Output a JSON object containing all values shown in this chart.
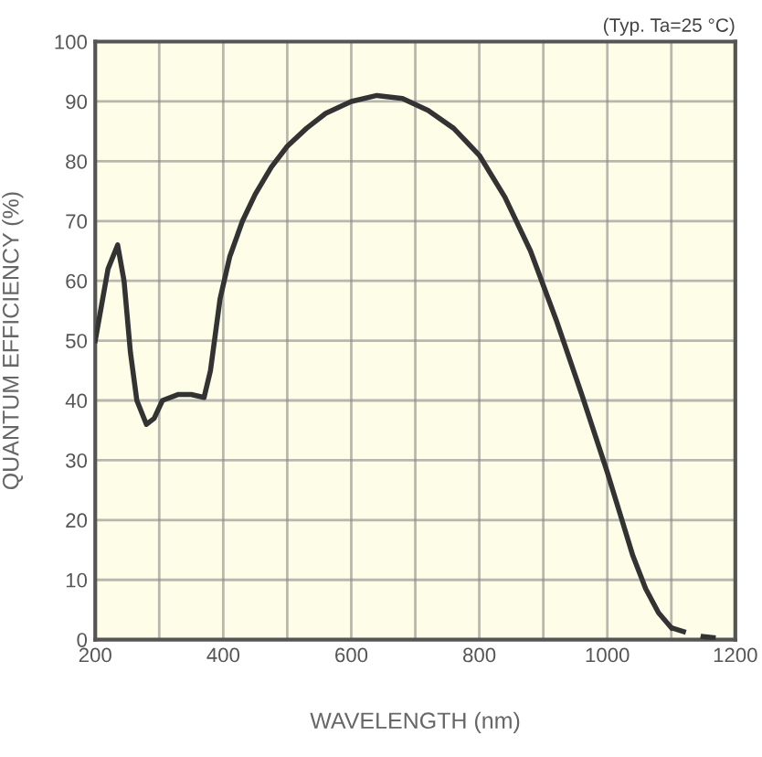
{
  "chart_data": {
    "type": "line",
    "xlabel": "WAVELENGTH (nm)",
    "ylabel": "QUANTUM EFFICIENCY (%)",
    "annotations": [
      "(Typ. Ta=25 °C)"
    ],
    "series": [
      {
        "color": "#333333",
        "line_style": "solid",
        "x": [
          200,
          210,
          220,
          235,
          245,
          255,
          265,
          280,
          292,
          305,
          330,
          350,
          370,
          380,
          395,
          410,
          430,
          450,
          475,
          500,
          530,
          560,
          600,
          640,
          680,
          720,
          760,
          800,
          840,
          880,
          920,
          960,
          1000,
          1020,
          1040,
          1060,
          1080,
          1100
        ],
        "values": [
          50,
          56,
          62,
          66,
          60,
          48,
          40,
          36,
          37,
          40,
          41,
          41,
          40.5,
          45,
          57,
          64,
          70,
          74.5,
          79,
          82.5,
          85.5,
          88,
          90,
          91,
          90.5,
          88.5,
          85.5,
          81,
          74,
          65,
          53.5,
          41,
          28,
          21,
          14,
          8.5,
          4.5,
          2
        ]
      },
      {
        "color": "#333333",
        "line_style": "dashed",
        "x": [
          1100,
          1130,
          1150,
          1170
        ],
        "values": [
          2,
          1,
          0.5,
          0.3
        ]
      }
    ],
    "xlim": [
      200,
      1200
    ],
    "xticks": [
      200,
      {
        "value": 300,
        "label": null
      },
      400,
      {
        "value": 500,
        "label": null
      },
      600,
      {
        "value": 700,
        "label": null
      },
      800,
      {
        "value": 900,
        "label": null
      },
      1000,
      {
        "value": 1100,
        "label": null
      },
      1200
    ],
    "ylim": [
      0,
      100
    ],
    "yticks": [
      0,
      10,
      20,
      30,
      40,
      50,
      60,
      70,
      80,
      90,
      100
    ],
    "grid": true
  }
}
